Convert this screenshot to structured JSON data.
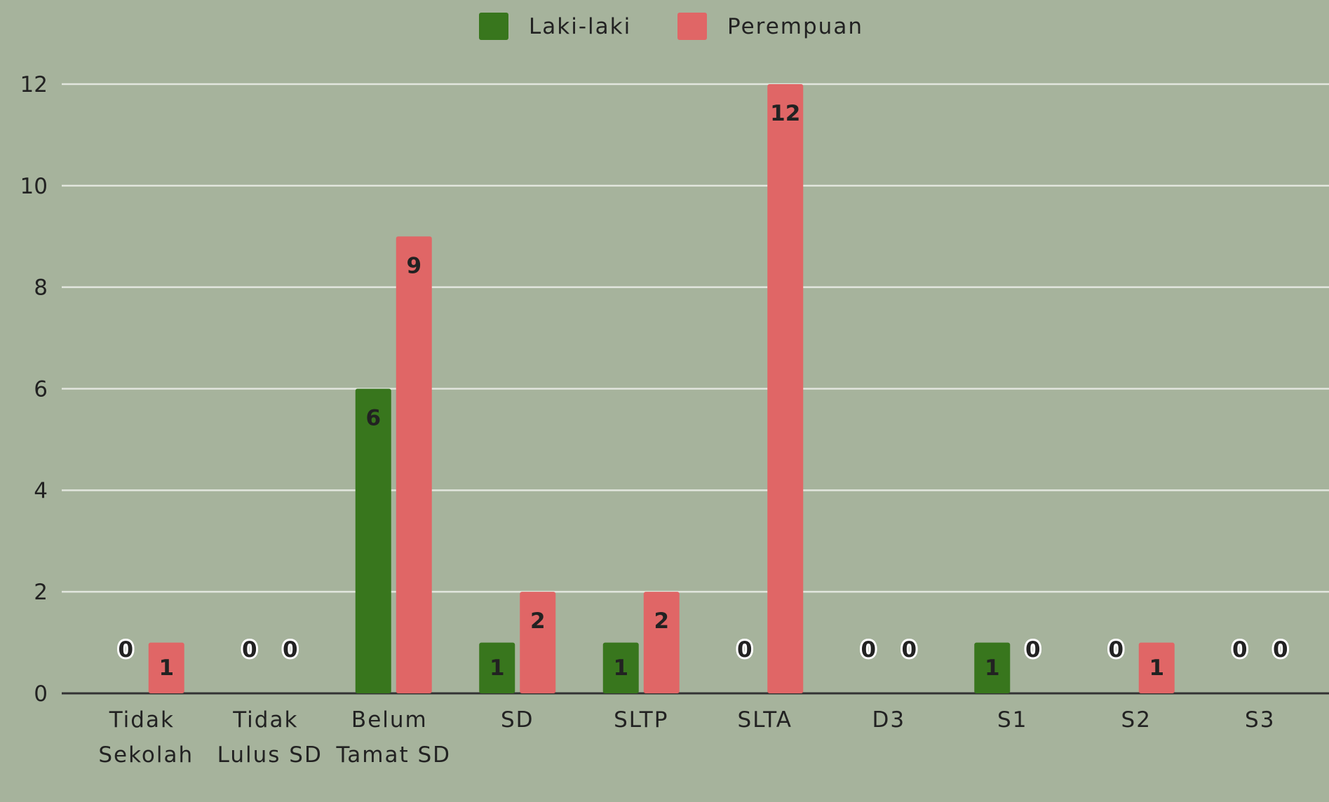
{
  "chart_data": {
    "type": "bar",
    "categories": [
      "Tidak Sekolah",
      "Tidak Lulus SD",
      "Belum Tamat SD",
      "SD",
      "SLTP",
      "SLTA",
      "D3",
      "S1",
      "S2",
      "S3"
    ],
    "series": [
      {
        "name": "Laki-laki",
        "color": "#38761d",
        "values": [
          0,
          0,
          6,
          1,
          1,
          0,
          0,
          1,
          0,
          0
        ]
      },
      {
        "name": "Perempuan",
        "color": "#e06666",
        "values": [
          1,
          0,
          9,
          2,
          2,
          12,
          0,
          0,
          1,
          0
        ]
      }
    ],
    "ylim": [
      0,
      12
    ],
    "yticks": [
      0,
      2,
      4,
      6,
      8,
      10,
      12
    ],
    "grid": true,
    "legend": "top"
  }
}
